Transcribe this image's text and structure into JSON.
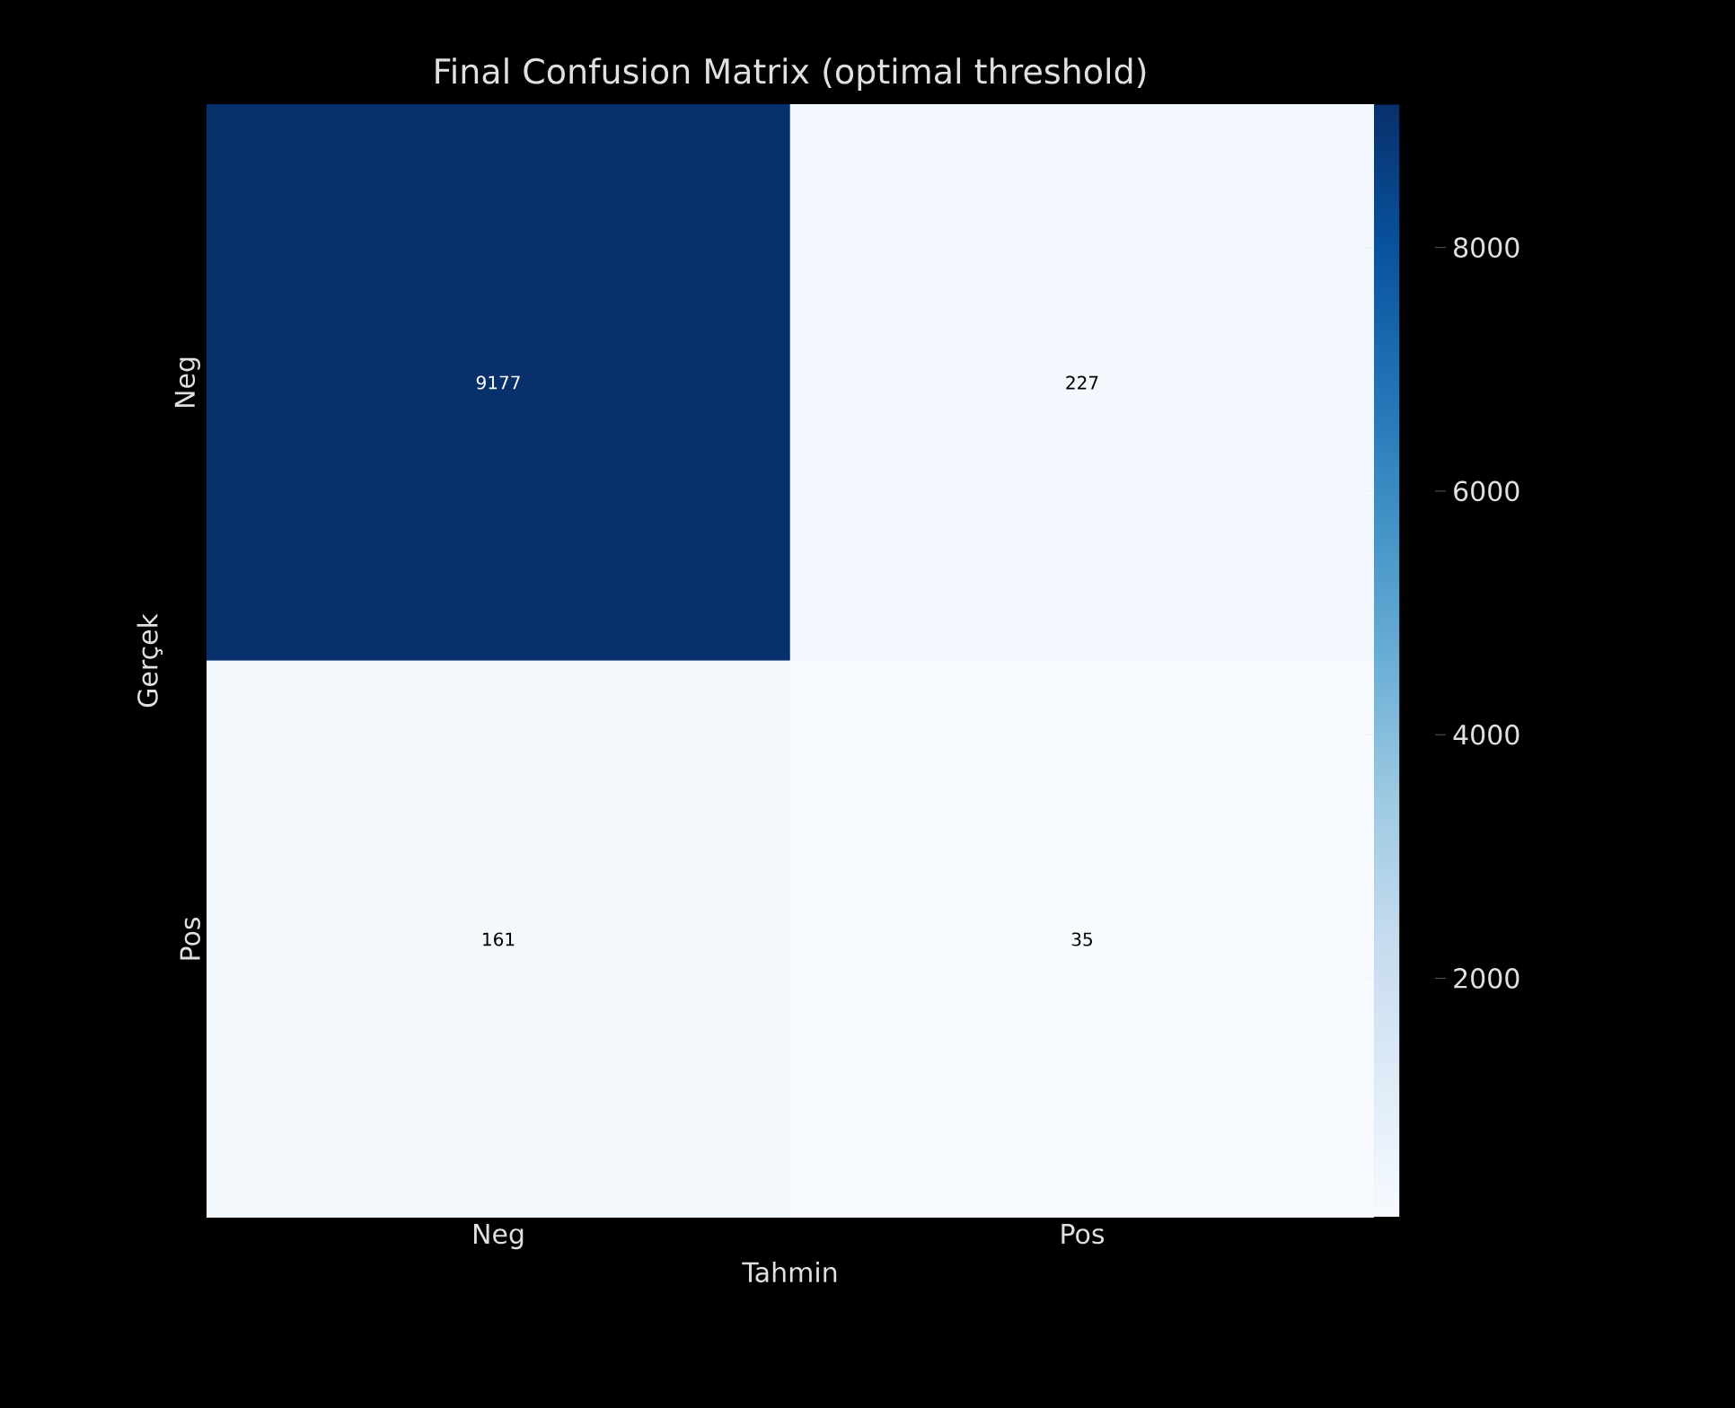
{
  "chart_data": {
    "type": "heatmap",
    "title": "Final Confusion Matrix (optimal threshold)",
    "xlabel": "Tahmin",
    "ylabel": "Gerçek",
    "categories": [
      "Neg",
      "Pos"
    ],
    "y_categories": [
      "Neg",
      "Pos"
    ],
    "cells": [
      [
        9177,
        227
      ],
      [
        161,
        35
      ]
    ],
    "clim": [
      35,
      9177
    ],
    "cticks": [
      2000,
      4000,
      6000,
      8000
    ],
    "data_labels": true
  }
}
